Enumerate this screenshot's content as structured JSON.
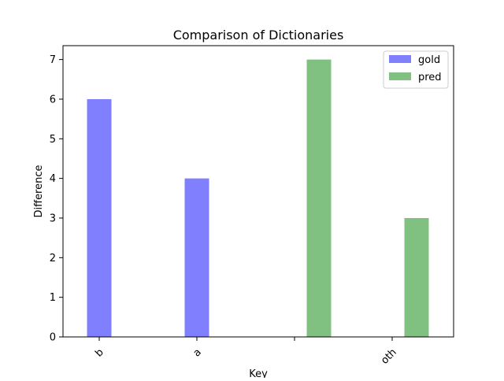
{
  "chart_data": {
    "type": "bar",
    "title": "Comparison of Dictionaries",
    "xlabel": "Key",
    "ylabel": "Difference",
    "categories": [
      "b",
      "a",
      "",
      "oth"
    ],
    "ylim": [
      0,
      7.35
    ],
    "yticks": [
      0,
      1,
      2,
      3,
      4,
      5,
      6,
      7
    ],
    "grid": false,
    "legend_position": "top-right",
    "series": [
      {
        "name": "gold",
        "color": "#8080ff",
        "values": [
          6,
          4,
          0,
          0
        ]
      },
      {
        "name": "pred",
        "color": "#80c080",
        "values": [
          0,
          0,
          7,
          3
        ]
      }
    ]
  }
}
